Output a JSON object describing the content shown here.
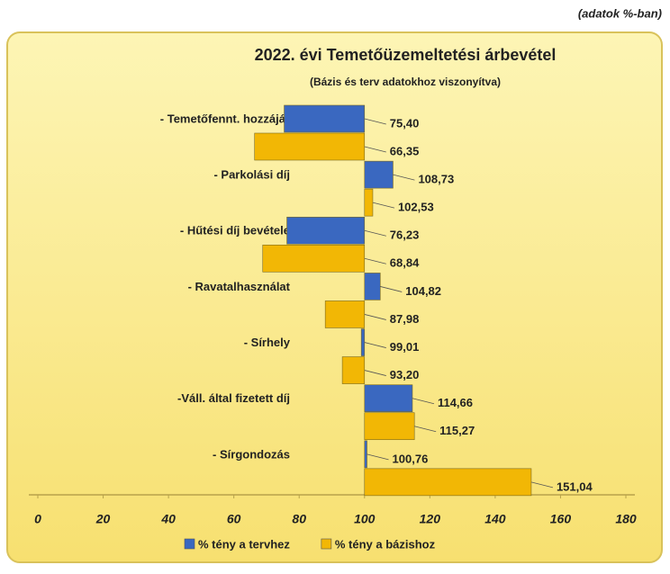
{
  "chart_data": {
    "type": "bar",
    "orientation": "horizontal",
    "note": "(adatok %-ban)",
    "title": "2022. évi Temetőüzemeltetési árbevétel",
    "subtitle": "(Bázis és terv adatokhoz viszonyítva)",
    "categories": [
      "- Temetőfennt. hozzájár",
      "- Parkolási díj",
      "- Hűtési díj bevétele",
      "- Ravatalhasználat",
      "- Sírhely",
      "-Váll. által fizetett díj",
      "- Sírgondozás"
    ],
    "series": [
      {
        "name": "% tény a tervhez",
        "color": "#3a68c0",
        "values": [
          75.4,
          108.73,
          76.23,
          104.82,
          99.01,
          114.66,
          100.76
        ],
        "value_labels": [
          "75,40",
          "108,73",
          "76,23",
          "104,82",
          "99,01",
          "114,66",
          "100,76"
        ]
      },
      {
        "name": "% tény a bázishoz",
        "color": "#f2b705",
        "values": [
          66.35,
          102.53,
          68.84,
          87.98,
          93.2,
          115.27,
          151.04
        ],
        "value_labels": [
          "66,35",
          "102,53",
          "68,84",
          "87,98",
          "93,20",
          "115,27",
          "151,04"
        ]
      }
    ],
    "bar_base": 100,
    "xlim": [
      0,
      180
    ],
    "xticks": [
      0,
      20,
      40,
      60,
      80,
      100,
      120,
      140,
      160,
      180
    ],
    "grid": false,
    "legend": "bottom"
  }
}
